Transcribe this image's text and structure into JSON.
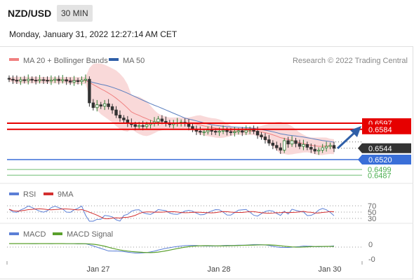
{
  "header": {
    "pair": "NZD/USD",
    "timeframe": "30 MIN",
    "timestamp": "Monday, January 31, 2022 12:27:14 AM CET"
  },
  "legend": {
    "ma20": "MA 20 + Bollinger Bands",
    "ma50": "MA 50",
    "credit": "Research © 2022 Trading Central",
    "rsi": "RSI",
    "rsi_ma": "9MA",
    "macd": "MACD",
    "macd_signal": "MACD Signal"
  },
  "colors": {
    "up": "#2e7d32",
    "down": "#333333",
    "ma20": "#f08080",
    "band": "#f8d0d0",
    "ma50": "#5c7fbf",
    "resistance": "#e60000",
    "support": "#3a6fd8",
    "target": "#4caf50",
    "current": "#333333",
    "rsi": "#5b7fd6",
    "rsi_ma": "#d32f2f",
    "macd": "#5b7fd6",
    "macd_signal": "#5aa02c",
    "arrow": "#2f5fa8"
  },
  "chart_data": {
    "type": "candlestick",
    "x_ticks": [
      "Jan 27",
      "Jan 28",
      "Jan 30"
    ],
    "price_levels": [
      {
        "value": 0.6597,
        "label": "0.6597",
        "kind": "resistance"
      },
      {
        "value": 0.6584,
        "label": "0.6584",
        "kind": "resistance"
      },
      {
        "value": 0.6544,
        "label": "0.6544",
        "kind": "current"
      },
      {
        "value": 0.652,
        "label": "0.6520",
        "kind": "support"
      },
      {
        "value": 0.6499,
        "label": "0.6499",
        "kind": "target"
      },
      {
        "value": 0.6487,
        "label": "0.6487",
        "kind": "target"
      }
    ],
    "closes": [
      0.669,
      0.6688,
      0.6686,
      0.6689,
      0.6687,
      0.669,
      0.6688,
      0.6687,
      0.6689,
      0.6688,
      0.6686,
      0.6688,
      0.669,
      0.6687,
      0.6689,
      0.6686,
      0.6684,
      0.6687,
      0.6685,
      0.6688,
      0.669,
      0.664,
      0.663,
      0.6636,
      0.6633,
      0.6638,
      0.6632,
      0.6625,
      0.6614,
      0.6608,
      0.6604,
      0.6597,
      0.6594,
      0.659,
      0.6592,
      0.659,
      0.6594,
      0.6596,
      0.66,
      0.6606,
      0.6601,
      0.6598,
      0.6594,
      0.6596,
      0.6598,
      0.6599,
      0.6596,
      0.659,
      0.6584,
      0.658,
      0.6578,
      0.6579,
      0.6582,
      0.658,
      0.6578,
      0.658,
      0.6582,
      0.6579,
      0.6577,
      0.6579,
      0.6581,
      0.6578,
      0.6582,
      0.6584,
      0.658,
      0.6572,
      0.6568,
      0.6562,
      0.6555,
      0.655,
      0.6545,
      0.654,
      0.656,
      0.6553,
      0.656,
      0.6554,
      0.6548,
      0.6552,
      0.6546,
      0.6542,
      0.6538,
      0.654,
      0.6545,
      0.6548,
      0.655,
      0.6544
    ],
    "rsi": {
      "levels": [
        70,
        50,
        30
      ]
    },
    "macd": {
      "levels": [
        "0",
        "-0"
      ]
    }
  }
}
